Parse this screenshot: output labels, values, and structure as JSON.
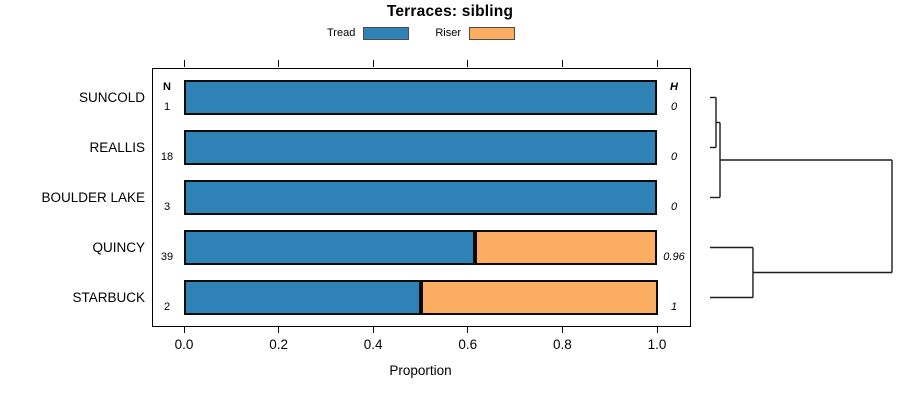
{
  "title": "Terraces: sibling",
  "legend": {
    "items": [
      {
        "label": "Tread",
        "color": "#2E82B5"
      },
      {
        "label": "Riser",
        "color": "#FBAD61"
      }
    ]
  },
  "columns": {
    "n_header": "N",
    "h_header": "H"
  },
  "axis": {
    "xlabel": "Proportion"
  },
  "chart_data": {
    "type": "bar",
    "orientation": "horizontal",
    "stacked": true,
    "title": "Terraces: sibling",
    "xlabel": "Proportion",
    "xlim": [
      0,
      1
    ],
    "xticks": [
      "0.0",
      "0.2",
      "0.4",
      "0.6",
      "0.8",
      "1.0"
    ],
    "legend_position": "top",
    "grid": false,
    "categories": [
      "SUNCOLD",
      "REALLIS",
      "BOULDER LAKE",
      "QUINCY",
      "STARBUCK"
    ],
    "n_values": [
      1,
      18,
      3,
      39,
      2
    ],
    "h_values": [
      "0",
      "0",
      "0",
      "0.96",
      "1"
    ],
    "series": [
      {
        "name": "Tread",
        "color": "#2E82B5",
        "values": [
          1,
          1,
          1,
          0.615,
          0.5
        ]
      },
      {
        "name": "Riser",
        "color": "#FBAD61",
        "values": [
          0,
          0,
          0,
          0.385,
          0.5
        ]
      }
    ],
    "dendrogram": {
      "note": "right-side cluster tree; leaf ids 0-4 follow categories order, merge k creates node 5+k",
      "merges": [
        {
          "a": 0,
          "b": 1,
          "height": 0.033
        },
        {
          "a": 5,
          "b": 2,
          "height": 0.055
        },
        {
          "a": 3,
          "b": 4,
          "height": 0.236
        },
        {
          "a": 6,
          "b": 7,
          "height": 1.0
        }
      ]
    }
  }
}
